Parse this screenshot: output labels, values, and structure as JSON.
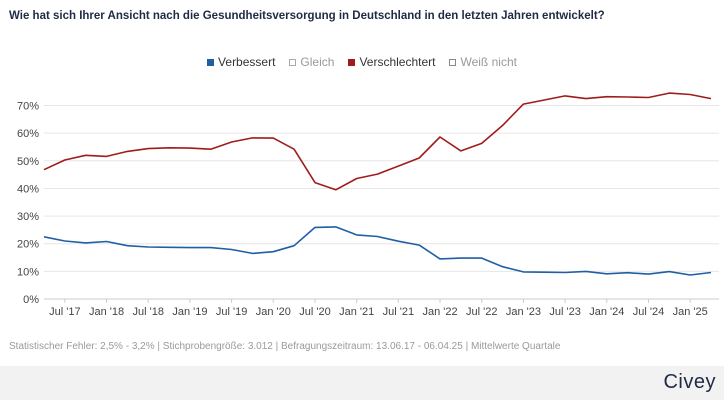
{
  "title": "Wie hat sich Ihrer Ansicht nach die Gesundheitsversorgung in Deutschland in den letzten Jahren entwickelt?",
  "footnote": "Statistischer Fehler: 2,5% - 3,2% | Stichprobengröße: 3.012 | Befragungszeitraum: 13.06.17 - 06.04.25 | Mittelwerte Quartale",
  "brand": "Civey",
  "legend": [
    {
      "label": "Verbessert",
      "color": "#1f5fa5",
      "filled": true
    },
    {
      "label": "Gleich",
      "color": "#aaaaaa",
      "filled": false
    },
    {
      "label": "Verschlechtert",
      "color": "#a01c1c",
      "filled": true
    },
    {
      "label": "Weiß nicht",
      "color": "#888888",
      "filled": false
    }
  ],
  "chart_data": {
    "type": "line",
    "x": [
      "2017-Q2",
      "2017-Q3",
      "2017-Q4",
      "2018-Q1",
      "2018-Q2",
      "2018-Q3",
      "2018-Q4",
      "2019-Q1",
      "2019-Q2",
      "2019-Q3",
      "2019-Q4",
      "2020-Q1",
      "2020-Q2",
      "2020-Q3",
      "2020-Q4",
      "2021-Q1",
      "2021-Q2",
      "2021-Q3",
      "2021-Q4",
      "2022-Q1",
      "2022-Q2",
      "2022-Q3",
      "2022-Q4",
      "2023-Q1",
      "2023-Q2",
      "2023-Q3",
      "2023-Q4",
      "2024-Q1",
      "2024-Q2",
      "2024-Q3",
      "2024-Q4",
      "2025-Q1",
      "2025-Q2"
    ],
    "x_tick_labels": [
      "Jul '17",
      "Jan '18",
      "Jul '18",
      "Jan '19",
      "Jul '19",
      "Jan '20",
      "Jul '20",
      "Jan '21",
      "Jul '21",
      "Jan '22",
      "Jul '22",
      "Jan '23",
      "Jul '23",
      "Jan '24",
      "Jul '24",
      "Jan '25"
    ],
    "y_ticks": [
      "0%",
      "10%",
      "20%",
      "30%",
      "40%",
      "50%",
      "60%",
      "70%"
    ],
    "ylim": [
      0,
      72
    ],
    "grid": true,
    "legend_position": "top-center",
    "series": [
      {
        "name": "Verbessert",
        "color": "#1f5fa5",
        "values": [
          22.5,
          21,
          20.3,
          20.8,
          19.3,
          18.8,
          18.7,
          18.6,
          18.6,
          17.9,
          16.5,
          17.1,
          19.3,
          25.9,
          26.1,
          23.2,
          22.6,
          20.9,
          19.5,
          14.5,
          14.8,
          14.8,
          11.7,
          9.8,
          9.7,
          9.6,
          10.0,
          9.1,
          9.5,
          9.0,
          9.9,
          8.7,
          9.6
        ]
      },
      {
        "name": "Verschlechtert",
        "color": "#a01c1c",
        "values": [
          46.8,
          50.3,
          52.0,
          51.6,
          53.4,
          54.4,
          54.7,
          54.6,
          54.2,
          56.8,
          58.3,
          58.2,
          54.2,
          42.1,
          39.5,
          43.6,
          45.2,
          48.1,
          51.0,
          58.6,
          53.6,
          56.3,
          62.8,
          70.5,
          72.0,
          73.5,
          72.5,
          73.2,
          73.1,
          72.9,
          74.5,
          74.0,
          72.5
        ]
      }
    ]
  }
}
